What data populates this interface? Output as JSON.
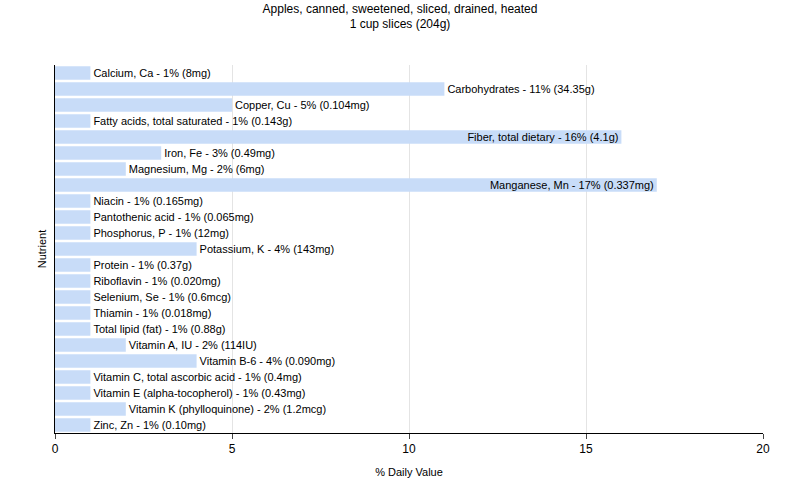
{
  "chart_data": {
    "type": "bar",
    "orientation": "horizontal",
    "title": "Apples, canned, sweetened, sliced, drained, heated",
    "subtitle": "1 cup slices (204g)",
    "x_label": "% Daily Value",
    "y_label": "Nutrient",
    "categories": [
      "Calcium, Ca",
      "Carbohydrates",
      "Copper, Cu",
      "Fatty acids, total saturated",
      "Fiber, total dietary",
      "Iron, Fe",
      "Magnesium, Mg",
      "Manganese, Mn",
      "Niacin",
      "Pantothenic acid",
      "Phosphorus, P",
      "Potassium, K",
      "Protein",
      "Riboflavin",
      "Selenium, Se",
      "Thiamin",
      "Total lipid (fat)",
      "Vitamin A, IU",
      "Vitamin B-6",
      "Vitamin C, total ascorbic acid",
      "Vitamin E (alpha-tocopherol)",
      "Vitamin K (phylloquinone)",
      "Zinc, Zn"
    ],
    "values": [
      1,
      11,
      5,
      1,
      16,
      3,
      2,
      17,
      1,
      1,
      1,
      4,
      1,
      1,
      1,
      1,
      1,
      2,
      4,
      1,
      1,
      2,
      1
    ],
    "value_labels": [
      "Calcium, Ca - 1% (8mg)",
      "Carbohydrates - 11% (34.35g)",
      "Copper, Cu - 5% (0.104mg)",
      "Fatty acids, total saturated - 1% (0.143g)",
      "Fiber, total dietary - 16% (4.1g)",
      "Iron, Fe - 3% (0.49mg)",
      "Magnesium, Mg - 2% (6mg)",
      "Manganese, Mn - 17% (0.337mg)",
      "Niacin - 1% (0.165mg)",
      "Pantothenic acid - 1% (0.065mg)",
      "Phosphorus, P - 1% (12mg)",
      "Potassium, K - 4% (143mg)",
      "Protein - 1% (0.37g)",
      "Riboflavin - 1% (0.020mg)",
      "Selenium, Se - 1% (0.6mcg)",
      "Thiamin - 1% (0.018mg)",
      "Total lipid (fat) - 1% (0.88g)",
      "Vitamin A, IU - 2% (114IU)",
      "Vitamin B-6 - 4% (0.090mg)",
      "Vitamin C, total ascorbic acid - 1% (0.4mg)",
      "Vitamin E (alpha-tocopherol) - 1% (0.43mg)",
      "Vitamin K (phylloquinone) - 2% (1.2mcg)",
      "Zinc, Zn - 1% (0.10mg)"
    ],
    "data_labels": true,
    "color": "#c8dcf8",
    "xlim": [
      0,
      20
    ],
    "xticks": [
      0,
      5,
      10,
      15,
      20
    ],
    "grid": true,
    "tick_labels": "x"
  }
}
